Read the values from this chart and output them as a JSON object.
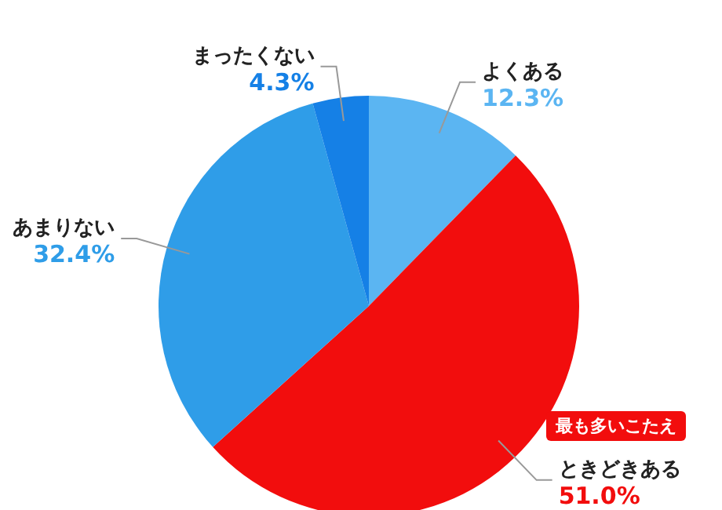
{
  "chart_data": {
    "type": "pie",
    "categories": [
      "よくある",
      "ときどきある",
      "あまりない",
      "まったくない"
    ],
    "values": [
      12.3,
      51.0,
      32.4,
      4.3
    ],
    "value_labels": [
      "12.3%",
      "51.0%",
      "32.4%",
      "4.3%"
    ],
    "colors": [
      "#5bb5f2",
      "#f20d0d",
      "#2f9de8",
      "#1580e6"
    ],
    "annotations": [
      "最も多いこたえ"
    ],
    "legend": false
  }
}
